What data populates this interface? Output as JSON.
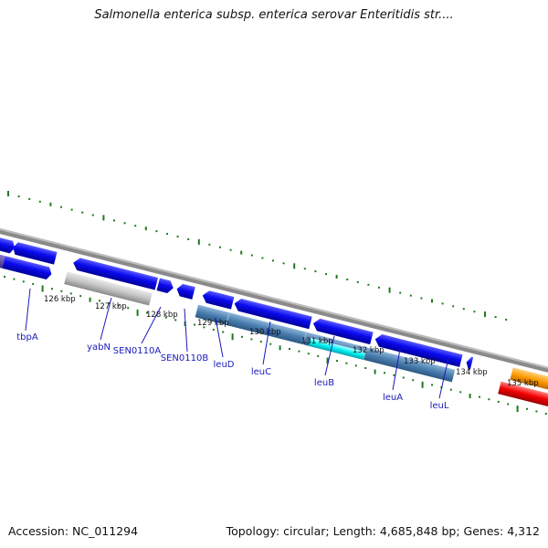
{
  "title": "Salmonella enterica subsp. enterica serovar Enteritidis str....",
  "footer": {
    "accession": "Accession: NC_011294",
    "topology": "Topology: circular; Length: 4,685,848 bp; Genes: 4,312"
  },
  "colors": {
    "cds_forward": "#0a0aef",
    "cds_reverse": "#0a0aef",
    "pseudogene": "#c8c8c8",
    "operon": "#4a7eb0",
    "highlight": "#00e8e8",
    "orange_feature": "#ff9b00",
    "red_feature": "#f20000",
    "backbone": "#8a8a8a",
    "tick": "#1f7a1f",
    "label": "#1a1ab8"
  },
  "scale_labels": [
    "126 kbp",
    "127 kbp",
    "128 kbp",
    "129 kbp",
    "130 kbp",
    "131 kbp",
    "132 kbp",
    "133 kbp",
    "134 kbp",
    "135 kbp"
  ],
  "gene_labels": [
    "tbpA",
    "yabN",
    "SEN0110A",
    "SEN0110B",
    "leuD",
    "leuC",
    "leuB",
    "leuA",
    "leuL"
  ]
}
